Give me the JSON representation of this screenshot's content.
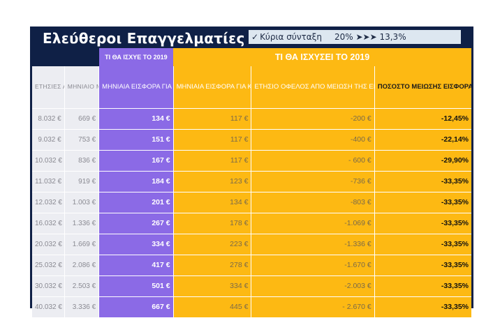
{
  "title": "Ελεύθεροι Επαγγελματίες",
  "badge": {
    "check": "✓",
    "label": "Κύρια σύνταξη",
    "from": "20%",
    "arrows": "➤➤➤",
    "to": "13,3%"
  },
  "header": {
    "current_label": "ΤΙ ΘΑ ΙΣΧΥΕ ΤΟ 2019",
    "new_label": "ΤΙ ΘΑ ΙΣΧΥΣΕΙ ΤΟ 2019",
    "columns": [
      "ΕΤΗΣΙΕΣ ΑΠΟΔΟΧΕΣ",
      "ΜΗΝΙΑΙΟ ΜΙΚΤΟ ΕΙΣΟΔΗΜΑ",
      "ΜΗΝΙΑΙΑ ΕΙΣΦΟΡΑ ΓΙΑ ΚΥΡΙΑ ΣΥΝΤΑΞΗ",
      "ΜΗΝΙΑΙΑ ΕΙΣΦΟΡΑ ΓΙΑ ΚΥΡΙΑ ΣΥΝΤΑΞΗ",
      "ΕΤΗΣΙΟ ΟΦΕΛΟΣ ΑΠΟ ΜΕΙΩΣΗ ΤΗΣ ΕΙΣΦΟΡΑΣ",
      "ΠΟΣΟΣΤΟ ΜΕΙΩΣΗΣ ΕΙΣΦΟΡΑΣ ΚΥΡΙΑΣ ΣΥΝΤΑΞΗΣ"
    ]
  },
  "rows": [
    [
      "8.032 €",
      "669 €",
      "134 €",
      "117 €",
      "-200 €",
      "-12,45%"
    ],
    [
      "9.032 €",
      "753 €",
      "151 €",
      "117 €",
      "-400 €",
      "-22,14%"
    ],
    [
      "10.032 €",
      "836 €",
      "167 €",
      "117 €",
      "- 600 €",
      "-29,90%"
    ],
    [
      "11.032 €",
      "919 €",
      "184 €",
      "123 €",
      "-736 €",
      "-33,35%"
    ],
    [
      "12.032 €",
      "1.003 €",
      "201 €",
      "134 €",
      "-803 €",
      "-33,35%"
    ],
    [
      "16.032 €",
      "1.336 €",
      "267 €",
      "178 €",
      "-1.069 €",
      "-33,35%"
    ],
    [
      "20.032 €",
      "1.669 €",
      "334 €",
      "223 €",
      "-1.336 €",
      "-33,35%"
    ],
    [
      "25.032 €",
      "2.086 €",
      "417 €",
      "278 €",
      "-1.670 €",
      "-33,35%"
    ],
    [
      "30.032 €",
      "2.503 €",
      "501 €",
      "334 €",
      "-2.003 €",
      "-33,35%"
    ],
    [
      "40.032 €",
      "3.336 €",
      "667 €",
      "445 €",
      "- 2.670 €",
      "-33,35%"
    ]
  ],
  "colors": {
    "navy": "#0f2046",
    "purple": "#8b6ae6",
    "orange": "#fdb913",
    "gray": "#ecedf2",
    "badge": "#dde7f0"
  }
}
